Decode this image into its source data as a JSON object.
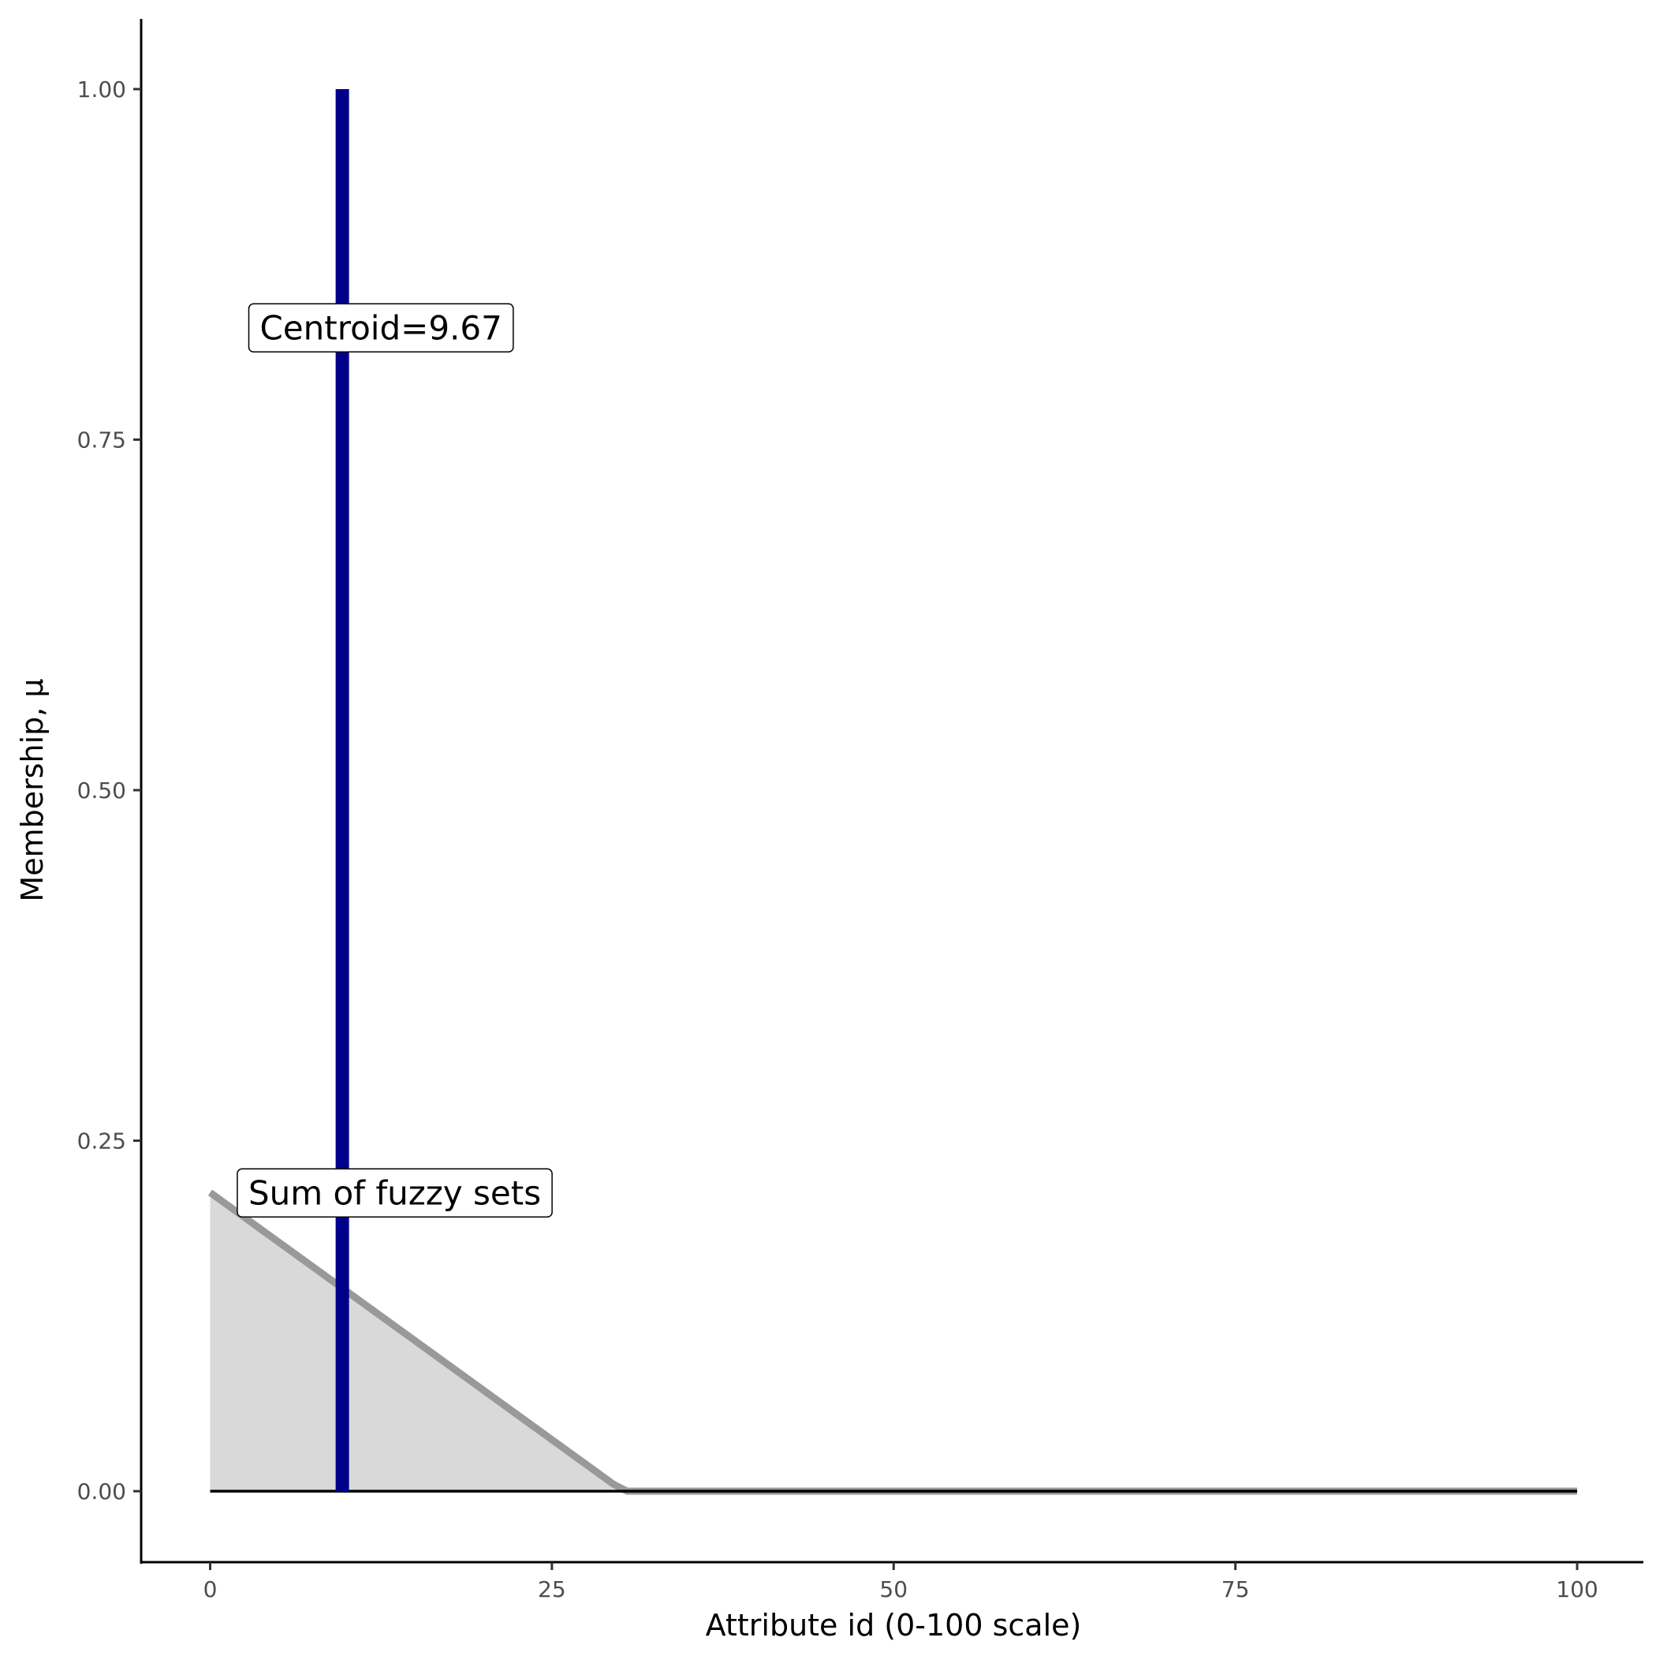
{
  "chart_data": {
    "type": "area",
    "title": "",
    "xlabel": "Attribute id (0-100 scale)",
    "ylabel": "Membership, μ",
    "xlim": [
      -5,
      105
    ],
    "ylim": [
      -0.05,
      1.05
    ],
    "x_ticks": [
      "0",
      "25",
      "50",
      "75",
      "100"
    ],
    "x_tick_values": [
      0,
      25,
      50,
      75,
      100
    ],
    "y_ticks": [
      "0.00",
      "0.25",
      "0.50",
      "0.75",
      "1.00"
    ],
    "y_tick_values": [
      0,
      0.25,
      0.5,
      0.75,
      1.0
    ],
    "grid": false,
    "series": [
      {
        "name": "Sum of fuzzy sets",
        "x": [
          0,
          29.5,
          30.5,
          100
        ],
        "y": [
          0.213,
          0.005,
          0,
          0
        ],
        "line_color": "#999999",
        "fill_color": "#d9d9d9"
      },
      {
        "name": "Centroid",
        "x": [
          9.67,
          9.67
        ],
        "y": [
          0,
          1
        ],
        "line_color": "#00008b"
      }
    ],
    "baseline": {
      "y": 0,
      "x": [
        0,
        100
      ],
      "color": "#000000"
    },
    "annotations": [
      {
        "text": "Centroid=9.67",
        "x": 12.5,
        "y": 0.83
      },
      {
        "text": "Sum of fuzzy sets",
        "x": 13.5,
        "y": 0.213
      }
    ]
  }
}
